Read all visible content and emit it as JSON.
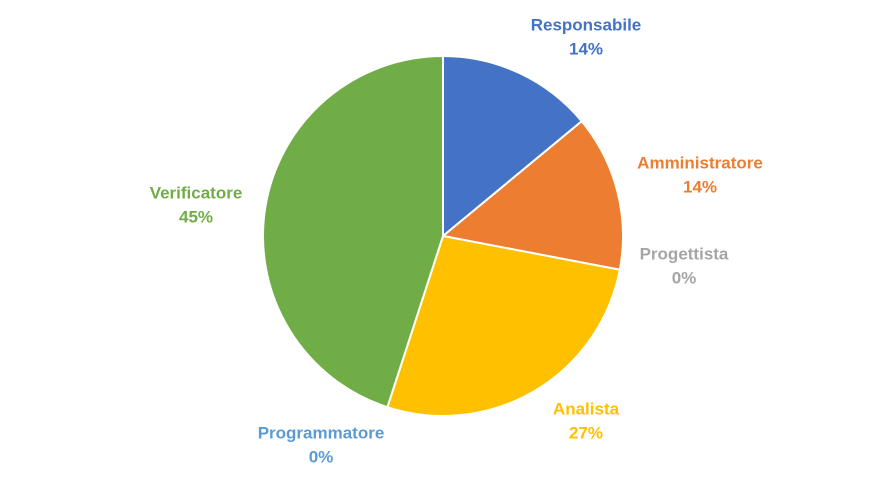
{
  "chart_data": {
    "type": "pie",
    "title": "",
    "start_angle_deg": 0,
    "direction": "clockwise",
    "slices": [
      {
        "label": "Responsabile",
        "value": 14,
        "display": "14%",
        "color": "#4472C4"
      },
      {
        "label": "Amministratore",
        "value": 14,
        "display": "14%",
        "color": "#ED7D31"
      },
      {
        "label": "Progettista",
        "value": 0,
        "display": "0%",
        "color": "#A5A5A5"
      },
      {
        "label": "Analista",
        "value": 27,
        "display": "27%",
        "color": "#FFC000"
      },
      {
        "label": "Programmatore",
        "value": 0,
        "display": "0%",
        "color": "#5B9BD5"
      },
      {
        "label": "Verificatore",
        "value": 45,
        "display": "45%",
        "color": "#70AD47"
      }
    ],
    "legend": "none",
    "data_labels": "outside"
  }
}
